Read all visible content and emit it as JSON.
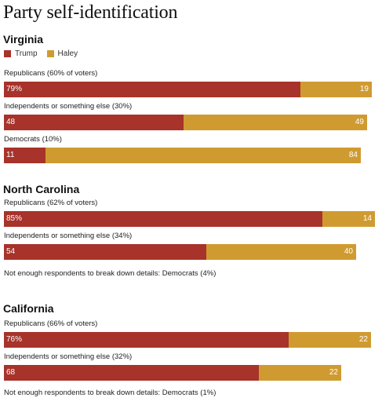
{
  "title": "Party self-identification",
  "legend": [
    {
      "name": "Trump",
      "color": "#a7332b"
    },
    {
      "name": "Haley",
      "color": "#cf9b31"
    }
  ],
  "chart_data": {
    "type": "bar",
    "stacked": true,
    "orientation": "horizontal",
    "title": "Party self-identification",
    "series": [
      {
        "name": "Trump",
        "color": "#a7332b"
      },
      {
        "name": "Haley",
        "color": "#cf9b31"
      }
    ],
    "sections": [
      {
        "state": "Virginia",
        "rows": [
          {
            "label": "Republicans (60% of voters)",
            "trump": 79,
            "haley": 19,
            "trump_label": "79%",
            "haley_label": "19"
          },
          {
            "label": "Independents or something else (30%)",
            "trump": 48,
            "haley": 49,
            "trump_label": "48",
            "haley_label": "49"
          },
          {
            "label": "Democrats (10%)",
            "trump": 11,
            "haley": 84,
            "trump_label": "11",
            "haley_label": "84"
          }
        ],
        "notes": []
      },
      {
        "state": "North Carolina",
        "rows": [
          {
            "label": "Republicans (62% of voters)",
            "trump": 85,
            "haley": 14,
            "trump_label": "85%",
            "haley_label": "14"
          },
          {
            "label": "Independents or something else (34%)",
            "trump": 54,
            "haley": 40,
            "trump_label": "54",
            "haley_label": "40"
          }
        ],
        "notes": [
          "Not enough respondents to break down details: Democrats (4%)"
        ]
      },
      {
        "state": "California",
        "rows": [
          {
            "label": "Republicans (66% of voters)",
            "trump": 76,
            "haley": 22,
            "trump_label": "76%",
            "haley_label": "22"
          },
          {
            "label": "Independents or something else (32%)",
            "trump": 68,
            "haley": 22,
            "trump_label": "68",
            "haley_label": "22"
          }
        ],
        "notes": [
          "Not enough respondents to break down details: Democrats (1%)"
        ]
      }
    ]
  }
}
